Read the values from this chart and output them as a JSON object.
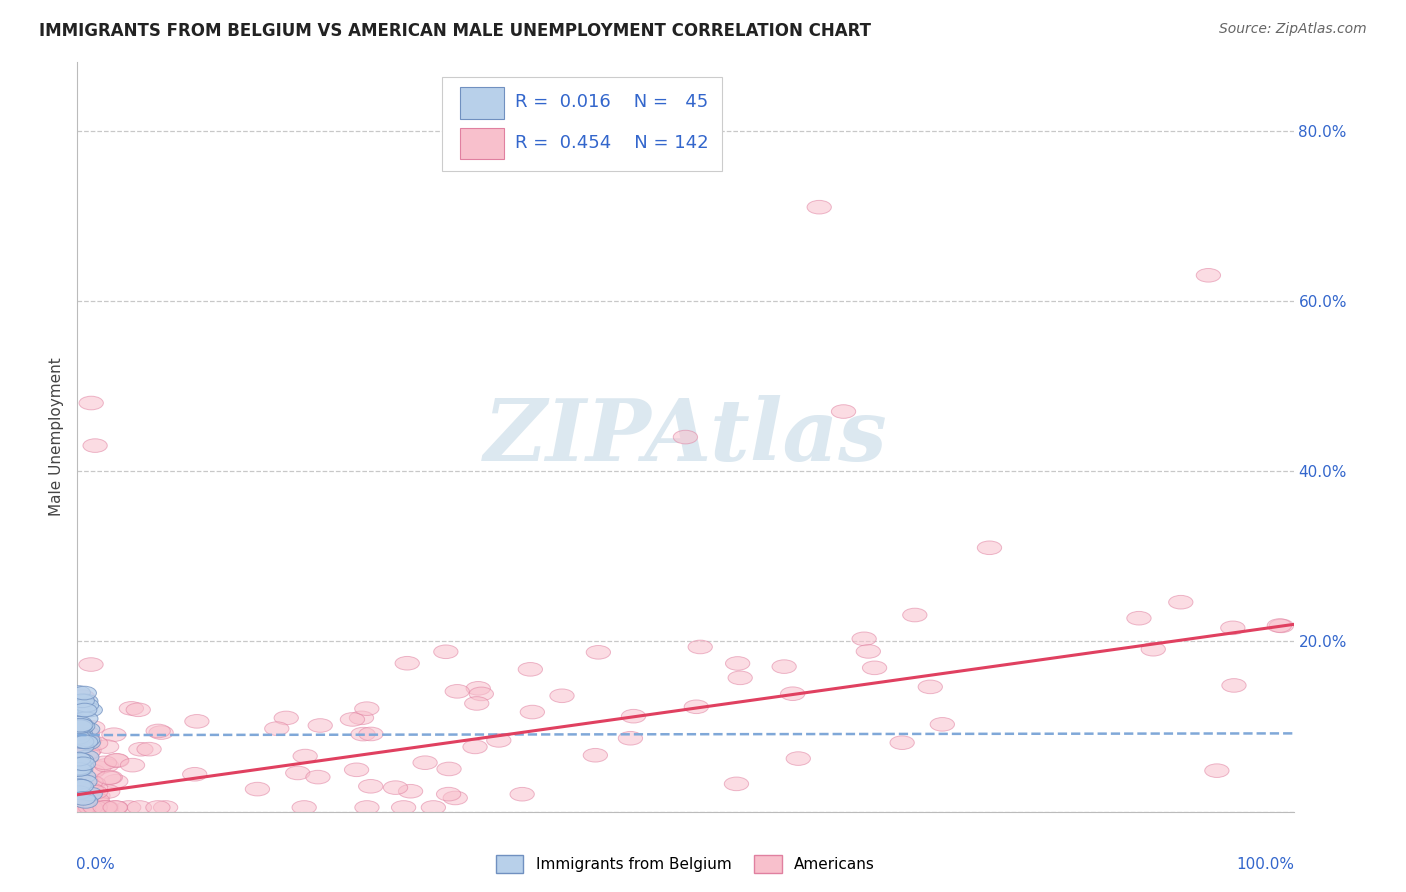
{
  "title": "IMMIGRANTS FROM BELGIUM VS AMERICAN MALE UNEMPLOYMENT CORRELATION CHART",
  "source": "Source: ZipAtlas.com",
  "ylabel": "Male Unemployment",
  "yaxis_right_labels": [
    "20.0%",
    "40.0%",
    "60.0%",
    "80.0%"
  ],
  "yaxis_ticks": [
    0.0,
    0.2,
    0.4,
    0.6,
    0.8
  ],
  "xlim": [
    0.0,
    1.0
  ],
  "ylim": [
    0.0,
    0.88
  ],
  "background_color": "#ffffff",
  "grid_color": "#c8c8c8",
  "blue_face": "#b8d0ea",
  "blue_edge": "#7090c0",
  "pink_face": "#f8c0cc",
  "pink_edge": "#e080a0",
  "blue_line_color": "#80a8d8",
  "pink_line_color": "#e04060",
  "watermark_color": "#dce8f0",
  "title_fontsize": 12,
  "source_fontsize": 10,
  "tick_fontsize": 11,
  "ylabel_fontsize": 11,
  "legend_fontsize": 13
}
